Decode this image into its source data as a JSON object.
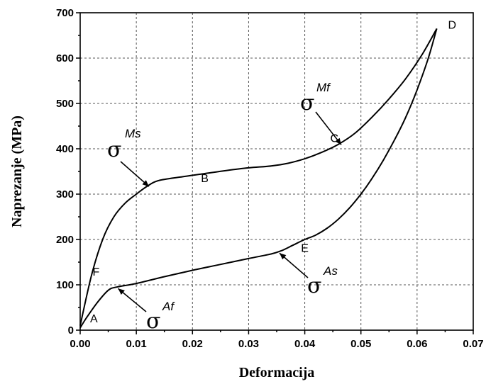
{
  "chart_data": {
    "type": "line",
    "title": "",
    "xlabel": "Deformacija",
    "ylabel": "Naprezanje (MPa)",
    "xlim": [
      0,
      0.07
    ],
    "ylim": [
      0,
      700
    ],
    "xticks": [
      "0.00",
      "0.01",
      "0.02",
      "0.03",
      "0.04",
      "0.05",
      "0.06",
      "0.07"
    ],
    "yticks": [
      "0",
      "100",
      "200",
      "300",
      "400",
      "500",
      "600",
      "700"
    ],
    "grid": true,
    "series": [
      {
        "role": "loading",
        "x": [
          0.0,
          0.002,
          0.004,
          0.006,
          0.008,
          0.01,
          0.012,
          0.014,
          0.018,
          0.022,
          0.026,
          0.03,
          0.034,
          0.037,
          0.04,
          0.043,
          0.046,
          0.049,
          0.052,
          0.055,
          0.058,
          0.061,
          0.0635
        ],
        "y": [
          10,
          120,
          200,
          250,
          280,
          300,
          318,
          330,
          338,
          345,
          352,
          358,
          362,
          368,
          378,
          392,
          410,
          435,
          470,
          510,
          555,
          610,
          665
        ]
      },
      {
        "role": "unloading",
        "x": [
          0.0635,
          0.062,
          0.06,
          0.058,
          0.056,
          0.054,
          0.052,
          0.05,
          0.048,
          0.046,
          0.044,
          0.042,
          0.04,
          0.038,
          0.036,
          0.034,
          0.03,
          0.025,
          0.02,
          0.015,
          0.01,
          0.0065,
          0.005,
          0.003,
          0.001,
          0.0
        ],
        "y": [
          665,
          600,
          530,
          470,
          420,
          375,
          335,
          300,
          270,
          245,
          225,
          210,
          200,
          188,
          176,
          168,
          158,
          145,
          132,
          118,
          103,
          95,
          88,
          60,
          25,
          5
        ]
      }
    ],
    "points": [
      {
        "label": "A",
        "x": 0.0,
        "y": 5
      },
      {
        "label": "B",
        "x": 0.0125,
        "y": 320
      },
      {
        "label": "C",
        "x": 0.0465,
        "y": 412
      },
      {
        "label": "D",
        "x": 0.0635,
        "y": 665
      },
      {
        "label": "E",
        "x": 0.0355,
        "y": 173
      },
      {
        "label": "F",
        "x": 0.0065,
        "y": 95
      }
    ],
    "annotations": [
      {
        "symbol": "σ",
        "sub": "Ms",
        "target": "B"
      },
      {
        "symbol": "σ",
        "sub": "Mf",
        "target": "C"
      },
      {
        "symbol": "σ",
        "sub": "As",
        "target": "E"
      },
      {
        "symbol": "σ",
        "sub": "Af",
        "target": "F"
      }
    ]
  }
}
